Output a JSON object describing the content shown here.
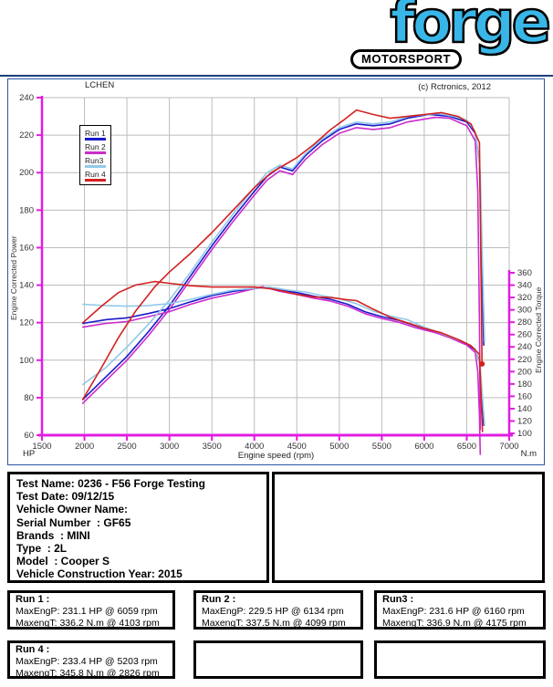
{
  "logo": {
    "brand": "forge",
    "badge": "MOTORSPORT"
  },
  "chart": {
    "operator": "LCHEN",
    "copyright": "(c) Rctronics, 2012",
    "legend": [
      "Run 1",
      "Run 2",
      "Run3",
      "Run 4"
    ],
    "xlabel": "Engine speed (rpm)",
    "ylabel_left": "Engine Corrected Power",
    "ylabel_right": "Engine Corrected Torque",
    "unit_left": "HP",
    "unit_right": "N.m"
  },
  "colors": {
    "logo_blue": "#38b6e8",
    "frame_blue": "#2b57a5",
    "divider_navy": "#1c3e7c",
    "axis_magenta": "#e11ce1",
    "grid_gray": "#bcbcbc",
    "run1_blue": "#1a1acc",
    "run2_magenta": "#cc2ccc",
    "run3_lightblue": "#92c8e8",
    "run4_red": "#d42020"
  },
  "chart_data": {
    "type": "line",
    "title": "",
    "xlabel": "Engine speed (rpm)",
    "ylabel_left": "Engine Corrected Power (HP)",
    "ylabel_right": "Engine Corrected Torque (N.m)",
    "xlim": [
      1500,
      7000
    ],
    "ylim_left": [
      60,
      240
    ],
    "ylim_right": [
      100,
      360
    ],
    "x_ticks": [
      1500,
      2000,
      2500,
      3000,
      3500,
      4000,
      4500,
      5000,
      5500,
      6000,
      6500,
      7000
    ],
    "y_ticks_left": [
      60,
      80,
      100,
      120,
      140,
      160,
      180,
      200,
      220,
      240
    ],
    "y_ticks_right": [
      100,
      120,
      140,
      160,
      180,
      200,
      220,
      240,
      260,
      280,
      300,
      320,
      340,
      360
    ],
    "grid": true,
    "legend_position": "top-left-inside",
    "series": [
      {
        "name": "Run 1",
        "color": "#1a1acc",
        "max_power": {
          "hp": 231.1,
          "rpm": 6059
        },
        "max_torque": {
          "nm": 336.2,
          "rpm": 4103
        },
        "power_hp": [
          [
            1980,
            79
          ],
          [
            2250,
            91
          ],
          [
            2500,
            102
          ],
          [
            2750,
            115
          ],
          [
            3000,
            129
          ],
          [
            3250,
            145
          ],
          [
            3500,
            161
          ],
          [
            3750,
            176
          ],
          [
            4000,
            190
          ],
          [
            4150,
            198
          ],
          [
            4300,
            203
          ],
          [
            4450,
            201
          ],
          [
            4600,
            209
          ],
          [
            4800,
            217
          ],
          [
            5000,
            223
          ],
          [
            5200,
            226
          ],
          [
            5400,
            225
          ],
          [
            5600,
            226
          ],
          [
            5800,
            229
          ],
          [
            6059,
            231.1
          ],
          [
            6300,
            230
          ],
          [
            6500,
            227
          ],
          [
            6600,
            221
          ],
          [
            6650,
            205
          ],
          [
            6680,
            150
          ],
          [
            6700,
            108
          ]
        ],
        "torque_nm": [
          [
            1980,
            278
          ],
          [
            2250,
            284
          ],
          [
            2500,
            287
          ],
          [
            2750,
            294
          ],
          [
            3000,
            302
          ],
          [
            3250,
            313
          ],
          [
            3500,
            323
          ],
          [
            3750,
            330
          ],
          [
            4103,
            336.2
          ],
          [
            4300,
            332
          ],
          [
            4500,
            328
          ],
          [
            4700,
            322
          ],
          [
            4900,
            317
          ],
          [
            5100,
            309
          ],
          [
            5300,
            297
          ],
          [
            5500,
            289
          ],
          [
            5700,
            283
          ],
          [
            5900,
            274
          ],
          [
            6100,
            266
          ],
          [
            6300,
            256
          ],
          [
            6500,
            245
          ],
          [
            6600,
            235
          ],
          [
            6650,
            216
          ],
          [
            6680,
            157
          ],
          [
            6700,
            113
          ]
        ]
      },
      {
        "name": "Run 2",
        "color": "#cc2ccc",
        "max_power": {
          "hp": 229.5,
          "rpm": 6134
        },
        "max_torque": {
          "nm": 337.5,
          "rpm": 4099
        },
        "power_hp": [
          [
            1980,
            77
          ],
          [
            2250,
            89
          ],
          [
            2500,
            100
          ],
          [
            2750,
            113
          ],
          [
            3000,
            127
          ],
          [
            3250,
            143
          ],
          [
            3500,
            159
          ],
          [
            3750,
            174
          ],
          [
            4000,
            188
          ],
          [
            4150,
            196
          ],
          [
            4300,
            201
          ],
          [
            4450,
            199
          ],
          [
            4600,
            207
          ],
          [
            4800,
            215
          ],
          [
            5000,
            221
          ],
          [
            5200,
            224
          ],
          [
            5400,
            223
          ],
          [
            5600,
            224
          ],
          [
            5800,
            227
          ],
          [
            6134,
            229.5
          ],
          [
            6300,
            229
          ],
          [
            6500,
            225
          ],
          [
            6600,
            217
          ],
          [
            6630,
            190
          ],
          [
            6650,
            120
          ],
          [
            6660,
            63
          ]
        ],
        "torque_nm": [
          [
            1980,
            272
          ],
          [
            2250,
            278
          ],
          [
            2500,
            281
          ],
          [
            2750,
            289
          ],
          [
            3000,
            297
          ],
          [
            3250,
            309
          ],
          [
            3500,
            319
          ],
          [
            3750,
            326
          ],
          [
            4099,
            337.5
          ],
          [
            4300,
            330
          ],
          [
            4500,
            325
          ],
          [
            4700,
            319
          ],
          [
            4900,
            314
          ],
          [
            5100,
            306
          ],
          [
            5300,
            294
          ],
          [
            5500,
            286
          ],
          [
            5700,
            280
          ],
          [
            5900,
            271
          ],
          [
            6134,
            263
          ],
          [
            6300,
            255
          ],
          [
            6500,
            243
          ],
          [
            6600,
            231
          ],
          [
            6630,
            200
          ],
          [
            6650,
            128
          ],
          [
            6660,
            66
          ]
        ]
      },
      {
        "name": "Run3",
        "color": "#92c8e8",
        "max_power": {
          "hp": 231.6,
          "rpm": 6160
        },
        "max_torque": {
          "nm": 336.9,
          "rpm": 4175
        },
        "power_hp": [
          [
            1980,
            87
          ],
          [
            2250,
            96
          ],
          [
            2500,
            107
          ],
          [
            2750,
            119
          ],
          [
            3000,
            132
          ],
          [
            3250,
            147
          ],
          [
            3500,
            163
          ],
          [
            3750,
            178
          ],
          [
            4000,
            192
          ],
          [
            4150,
            200
          ],
          [
            4300,
            204
          ],
          [
            4450,
            202
          ],
          [
            4600,
            210
          ],
          [
            4800,
            218
          ],
          [
            5000,
            224
          ],
          [
            5200,
            227
          ],
          [
            5400,
            226
          ],
          [
            5600,
            227
          ],
          [
            5800,
            230
          ],
          [
            6160,
            231.6
          ],
          [
            6350,
            230
          ],
          [
            6500,
            228
          ],
          [
            6600,
            222
          ],
          [
            6660,
            200
          ],
          [
            6690,
            145
          ],
          [
            6710,
            110
          ]
        ],
        "torque_nm": [
          [
            1980,
            309
          ],
          [
            2250,
            307
          ],
          [
            2500,
            306
          ],
          [
            2750,
            307
          ],
          [
            3000,
            310
          ],
          [
            3250,
            317
          ],
          [
            3500,
            325
          ],
          [
            3750,
            332
          ],
          [
            4175,
            336.9
          ],
          [
            4400,
            332
          ],
          [
            4600,
            329
          ],
          [
            4800,
            323
          ],
          [
            5000,
            318
          ],
          [
            5200,
            310
          ],
          [
            5400,
            298
          ],
          [
            5600,
            290
          ],
          [
            5800,
            284
          ],
          [
            6000,
            272
          ],
          [
            6160,
            264
          ],
          [
            6350,
            254
          ],
          [
            6500,
            246
          ],
          [
            6600,
            237
          ],
          [
            6660,
            208
          ],
          [
            6690,
            151
          ],
          [
            6710,
            114
          ]
        ]
      },
      {
        "name": "Run 4",
        "color": "#d42020",
        "max_power": {
          "hp": 233.4,
          "rpm": 5203
        },
        "max_torque": {
          "nm": 345.8,
          "rpm": 2826
        },
        "power_hp": [
          [
            1980,
            79
          ],
          [
            2200,
            96
          ],
          [
            2400,
            112
          ],
          [
            2600,
            126
          ],
          [
            2826,
            139
          ],
          [
            3000,
            147
          ],
          [
            3250,
            157
          ],
          [
            3500,
            168
          ],
          [
            3750,
            180
          ],
          [
            4000,
            192
          ],
          [
            4200,
            200
          ],
          [
            4350,
            204
          ],
          [
            4500,
            208
          ],
          [
            4700,
            215
          ],
          [
            4900,
            223
          ],
          [
            5050,
            228
          ],
          [
            5203,
            233.4
          ],
          [
            5400,
            231
          ],
          [
            5600,
            229
          ],
          [
            5800,
            230
          ],
          [
            6000,
            231
          ],
          [
            6200,
            232
          ],
          [
            6400,
            230
          ],
          [
            6550,
            226
          ],
          [
            6650,
            216
          ],
          [
            6665,
            160
          ],
          [
            6680,
            98
          ]
        ],
        "torque_nm": [
          [
            1980,
            279
          ],
          [
            2200,
            306
          ],
          [
            2400,
            328
          ],
          [
            2600,
            340
          ],
          [
            2826,
            345.8
          ],
          [
            3000,
            343
          ],
          [
            3250,
            339
          ],
          [
            3500,
            337
          ],
          [
            3750,
            337
          ],
          [
            4000,
            337
          ],
          [
            4200,
            334
          ],
          [
            4350,
            330
          ],
          [
            4500,
            325
          ],
          [
            4700,
            321
          ],
          [
            4900,
            320
          ],
          [
            5050,
            317
          ],
          [
            5203,
            315
          ],
          [
            5400,
            301
          ],
          [
            5600,
            288
          ],
          [
            5800,
            279
          ],
          [
            6000,
            270
          ],
          [
            6200,
            263
          ],
          [
            6400,
            252
          ],
          [
            6550,
            242
          ],
          [
            6650,
            228
          ],
          [
            6670,
            155
          ],
          [
            6685,
            103
          ]
        ]
      }
    ]
  },
  "test_info": {
    "lines": [
      "Test Name: 0236 - F56 Forge Testing",
      "Test Date: 09/12/15",
      "Vehicle Owner Name:",
      "Serial Number  : GF65",
      "Brands  : MINI",
      "Type  : 2L",
      "Model  : Cooper S",
      "Vehicle Construction Year: 2015"
    ]
  },
  "runs": [
    {
      "title": "Run 1 :",
      "power": "MaxEngP: 231.1 HP @ 6059 rpm",
      "torque": "MaxengT: 336.2 N.m @ 4103 rpm"
    },
    {
      "title": "Run 2 :",
      "power": "MaxEngP: 229.5 HP @ 6134 rpm",
      "torque": "MaxengT: 337.5 N.m @ 4099 rpm"
    },
    {
      "title": "Run3 :",
      "power": "MaxEngP: 231.6 HP @ 6160 rpm",
      "torque": "MaxengT: 336.9 N.m @ 4175 rpm"
    },
    {
      "title": "Run 4 :",
      "power": "MaxEngP: 233.4 HP @ 5203 rpm",
      "torque": "MaxengT: 345.8 N.m @ 2826 rpm"
    }
  ]
}
